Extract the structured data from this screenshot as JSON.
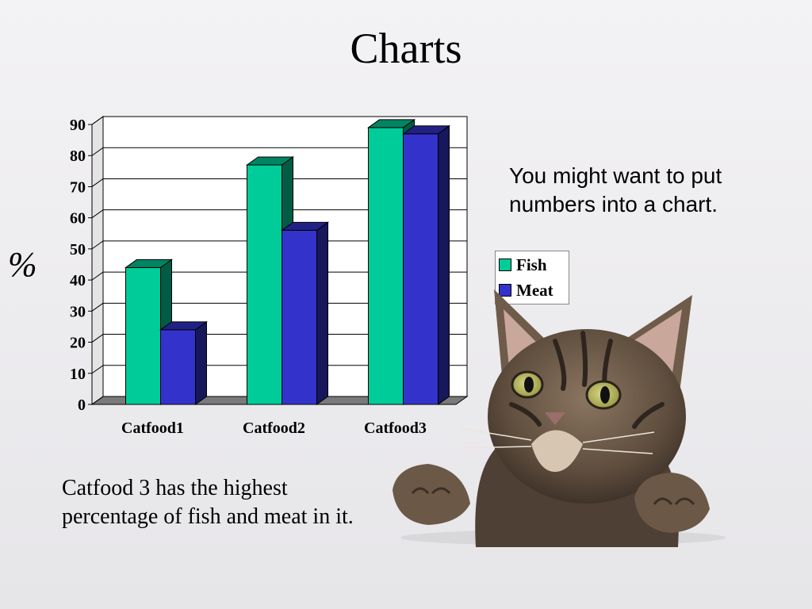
{
  "slide": {
    "title": "Charts",
    "note": "You might want to put numbers into a chart.",
    "caption": "Catfood 3 has the highest percentage of fish and meat in it."
  },
  "chart_data": {
    "type": "bar",
    "categories": [
      "Catfood1",
      "Catfood2",
      "Catfood3"
    ],
    "series": [
      {
        "name": "Fish",
        "values": [
          44,
          77,
          89
        ],
        "color": "#00cc99"
      },
      {
        "name": "Meat",
        "values": [
          24,
          56,
          87
        ],
        "color": "#3333cc"
      }
    ],
    "title": "",
    "xlabel": "",
    "ylabel": "%",
    "ylim": [
      0,
      90
    ],
    "yticks": [
      0,
      10,
      20,
      30,
      40,
      50,
      60,
      70,
      80,
      90
    ],
    "grid": true,
    "legend": "right",
    "style": "3d-clustered-column"
  }
}
